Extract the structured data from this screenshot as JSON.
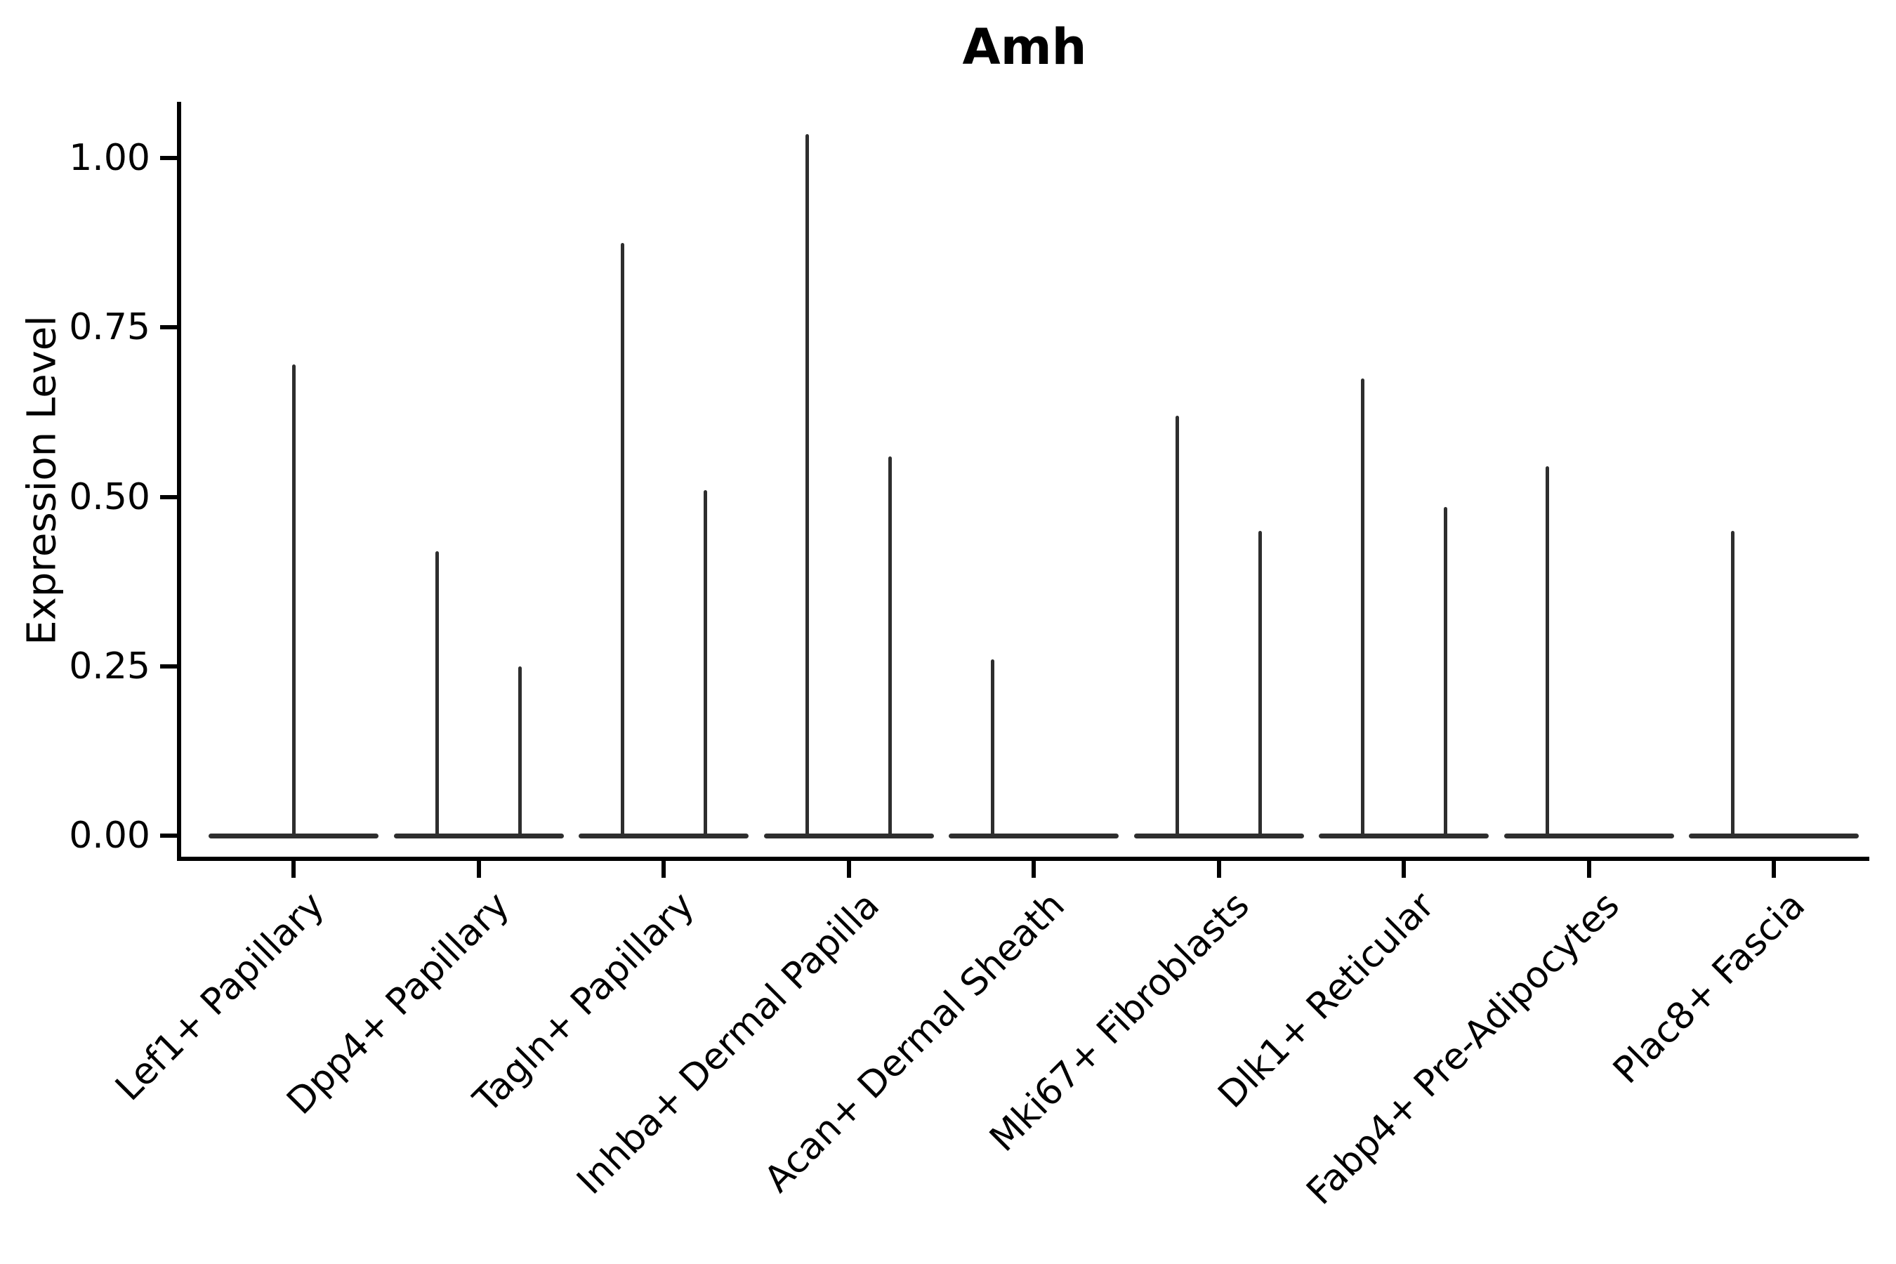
{
  "title": "Amh",
  "y_axis": {
    "label": "Expression Level",
    "ticks": [
      {
        "value": 0.0,
        "label": "0.00"
      },
      {
        "value": 0.25,
        "label": "0.25"
      },
      {
        "value": 0.5,
        "label": "0.50"
      },
      {
        "value": 0.75,
        "label": "0.75"
      },
      {
        "value": 1.0,
        "label": "1.00"
      }
    ]
  },
  "chart_data": {
    "type": "violin",
    "title": "Amh",
    "xlabel": "",
    "ylabel": "Expression Level",
    "ylim": [
      -0.03,
      1.09
    ],
    "yticks": [
      0.0,
      0.25,
      0.5,
      0.75,
      1.0
    ],
    "grid": false,
    "legend": false,
    "categories": [
      "Lef1+ Papillary",
      "Dpp4+ Papillary",
      "Tagln+ Papillary",
      "Inhba+ Dermal Papilla",
      "Acan+ Dermal Sheath",
      "Mki67+ Fibroblasts",
      "Dlk1+ Reticular",
      "Fabp4+ Pre-Adipocytes",
      "Plac8+ Fascia"
    ],
    "violins": [
      {
        "category": "Lef1+ Papillary",
        "baseline": 0,
        "spikes": [
          {
            "pos": "center",
            "peak": 0.695
          }
        ]
      },
      {
        "category": "Dpp4+ Papillary",
        "baseline": 0,
        "spikes": [
          {
            "pos": "left",
            "peak": 0.42
          },
          {
            "pos": "right",
            "peak": 0.25
          }
        ]
      },
      {
        "category": "Tagln+ Papillary",
        "baseline": 0,
        "spikes": [
          {
            "pos": "left",
            "peak": 0.875
          },
          {
            "pos": "right",
            "peak": 0.51
          }
        ]
      },
      {
        "category": "Inhba+ Dermal Papilla",
        "baseline": 0,
        "spikes": [
          {
            "pos": "left",
            "peak": 1.035
          },
          {
            "pos": "right",
            "peak": 0.56
          }
        ]
      },
      {
        "category": "Acan+ Dermal Sheath",
        "baseline": 0,
        "spikes": [
          {
            "pos": "left",
            "peak": 0.26
          }
        ]
      },
      {
        "category": "Mki67+ Fibroblasts",
        "baseline": 0,
        "spikes": [
          {
            "pos": "left",
            "peak": 0.62
          },
          {
            "pos": "right",
            "peak": 0.45
          }
        ]
      },
      {
        "category": "Dlk1+ Reticular",
        "baseline": 0,
        "spikes": [
          {
            "pos": "left",
            "peak": 0.675
          },
          {
            "pos": "right",
            "peak": 0.485
          }
        ]
      },
      {
        "category": "Fabp4+ Pre-Adipocytes",
        "baseline": 0,
        "spikes": [
          {
            "pos": "left",
            "peak": 0.545
          }
        ]
      },
      {
        "category": "Plac8+ Fascia",
        "baseline": 0,
        "spikes": [
          {
            "pos": "left",
            "peak": 0.45
          }
        ]
      }
    ],
    "colors": {
      "violin_stroke": "#2e2e2e",
      "axis": "#000000",
      "text": "#000000",
      "background": "#ffffff"
    }
  }
}
